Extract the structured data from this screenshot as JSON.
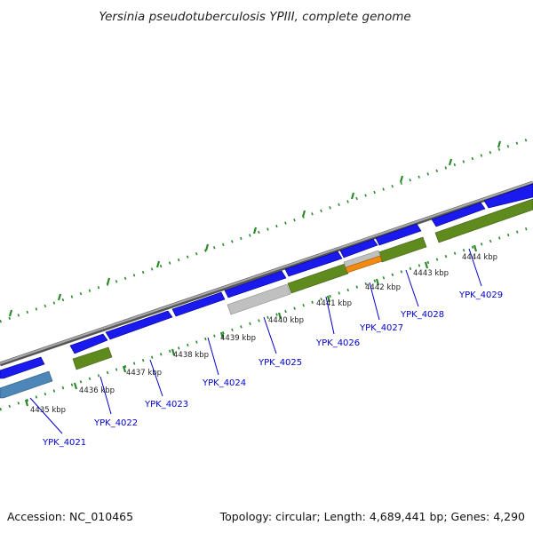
{
  "title": "Yersinia pseudotuberculosis YPIII, complete genome",
  "accession": "Accession: NC_010465",
  "summary": "Topology: circular; Length: 4,689,441 bp; Genes: 4,290",
  "colors": {
    "backbone": "#888888",
    "blue_gene": "#1a1aee",
    "green_gene": "#5f8a1e",
    "gray_gene": "#c0c0c0",
    "orange_gene": "#f08a10",
    "steel_gene": "#4d86b8",
    "tick": "#2a8a2a",
    "label": "#0000cc"
  },
  "ticks": [
    "4435 kbp",
    "4436 kbp",
    "4437 kbp",
    "4438 kbp",
    "4439 kbp",
    "4440 kbp",
    "4441 kbp",
    "4442 kbp",
    "4443 kbp",
    "4444 kbp"
  ],
  "gene_labels": [
    "YPK_4021",
    "YPK_4022",
    "YPK_4023",
    "YPK_4024",
    "YPK_4025",
    "YPK_4026",
    "YPK_4027",
    "YPK_4028",
    "YPK_4029"
  ],
  "genes": [
    {
      "lane": "outer-1",
      "color": "blue",
      "dir": "+"
    },
    {
      "lane": "outer-1",
      "color": "blue",
      "dir": "+"
    },
    {
      "lane": "outer-1",
      "color": "blue",
      "dir": "+"
    },
    {
      "lane": "outer-1",
      "color": "blue",
      "dir": "+"
    },
    {
      "lane": "outer-1",
      "color": "blue",
      "dir": "+"
    },
    {
      "lane": "outer-1",
      "color": "blue",
      "dir": "+"
    },
    {
      "lane": "outer-1",
      "color": "blue",
      "dir": "+"
    },
    {
      "lane": "outer-1",
      "color": "blue",
      "dir": "+"
    },
    {
      "lane": "outer-1",
      "color": "blue",
      "dir": "+"
    },
    {
      "lane": "outer-1",
      "color": "blue",
      "dir": "+"
    },
    {
      "lane": "inner-1",
      "color": "steel",
      "dir": "-"
    },
    {
      "lane": "inner-1",
      "color": "green",
      "dir": "-"
    },
    {
      "lane": "inner-1",
      "color": "gray",
      "dir": "-"
    },
    {
      "lane": "inner-1",
      "color": "green",
      "dir": "-"
    },
    {
      "lane": "inner-1",
      "color": "green",
      "dir": "-"
    },
    {
      "lane": "inner-1",
      "color": "green",
      "dir": "-"
    },
    {
      "lane": "inner-2",
      "color": "gray",
      "dir": "-"
    },
    {
      "lane": "inner-2",
      "color": "orange",
      "dir": "-"
    }
  ]
}
